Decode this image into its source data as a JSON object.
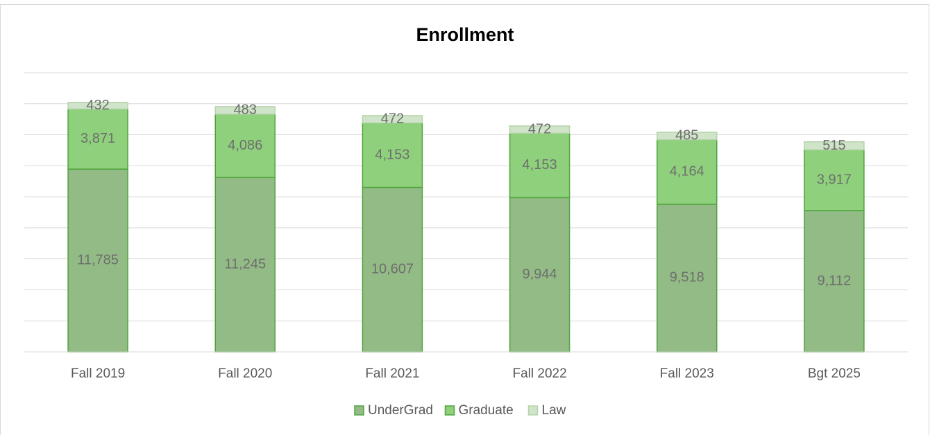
{
  "chart_data": {
    "type": "stacked_bar",
    "title": "Enrollment",
    "categories": [
      "Fall 2019",
      "Fall 2020",
      "Fall 2021",
      "Fall 2022",
      "Fall 2023",
      "Bgt 2025"
    ],
    "series": [
      {
        "name": "UnderGrad",
        "color": "#93bb86",
        "edgecolor": "#4fa33c",
        "values": [
          11785,
          11245,
          10607,
          9944,
          9518,
          9112
        ],
        "value_labels": [
          "11,785",
          "11,245",
          "10,607",
          "9,944",
          "9,518",
          "9,112"
        ]
      },
      {
        "name": "Graduate",
        "color": "#8fd07c",
        "edgecolor": "#4fa33c",
        "values": [
          3871,
          4086,
          4153,
          4153,
          4164,
          3917
        ],
        "value_labels": [
          "3,871",
          "4,086",
          "4,153",
          "4,153",
          "4,164",
          "3,917"
        ]
      },
      {
        "name": "Law",
        "color": "#cfe4c8",
        "edgecolor": "#b5d4aa",
        "values": [
          432,
          483,
          472,
          472,
          485,
          515
        ]
      }
    ],
    "ylim": [
      0,
      18000
    ],
    "yticks": [
      0,
      2000,
      4000,
      6000,
      8000,
      10000,
      12000,
      14000,
      16000,
      18000
    ],
    "grid": true,
    "legend": "bottom"
  }
}
